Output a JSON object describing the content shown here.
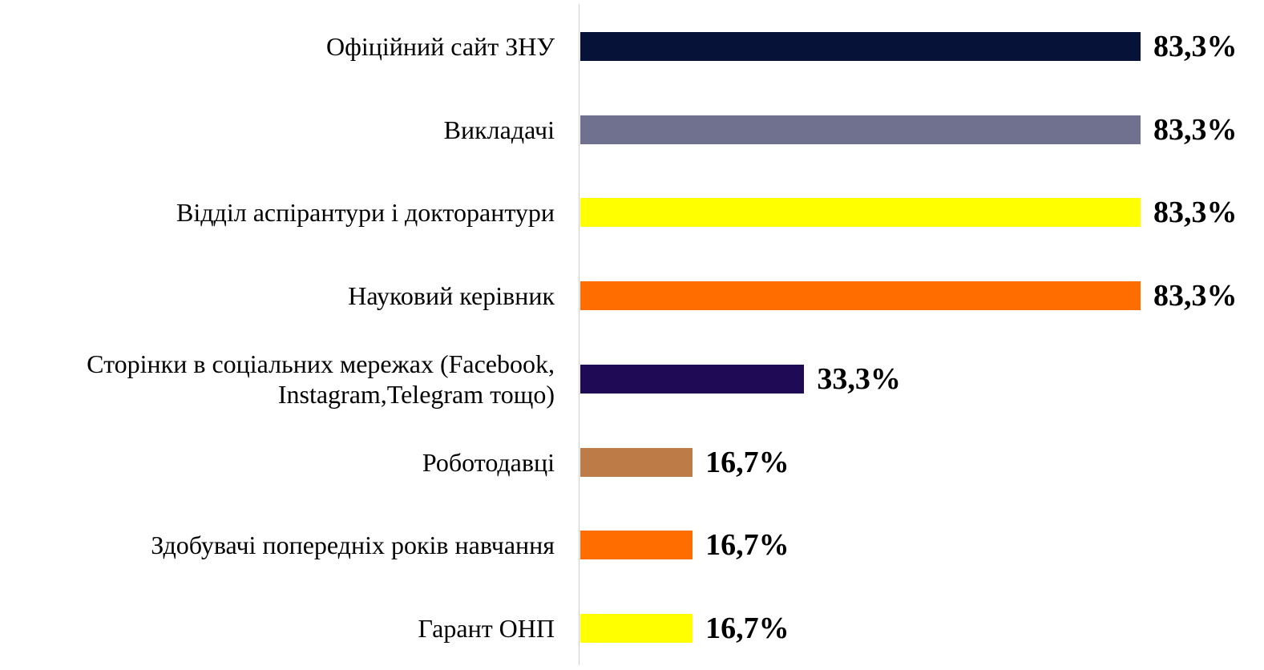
{
  "chart_data": {
    "type": "bar",
    "orientation": "horizontal",
    "categories": [
      "Офіційний сайт ЗНУ",
      "Викладачі",
      "Відділ аспірантури і докторантури",
      "Науковий керівник",
      "Сторінки в соціальних мережах (Facebook, Instagram,Telegram тощо)",
      "Роботодавці",
      "Здобувачі попередніх років навчання",
      "Гарант ОНП"
    ],
    "values": [
      83.3,
      83.3,
      83.3,
      83.3,
      33.3,
      16.7,
      16.7,
      16.7
    ],
    "value_labels": [
      "83,3%",
      "83,3%",
      "83,3%",
      "83,3%",
      "33,3%",
      "16,7%",
      "16,7%",
      "16,7%"
    ],
    "colors": [
      "#061237",
      "#6f718e",
      "#ffff00",
      "#ff6d00",
      "#1f0a55",
      "#bd7c47",
      "#ff6d00",
      "#ffff00"
    ]
  }
}
